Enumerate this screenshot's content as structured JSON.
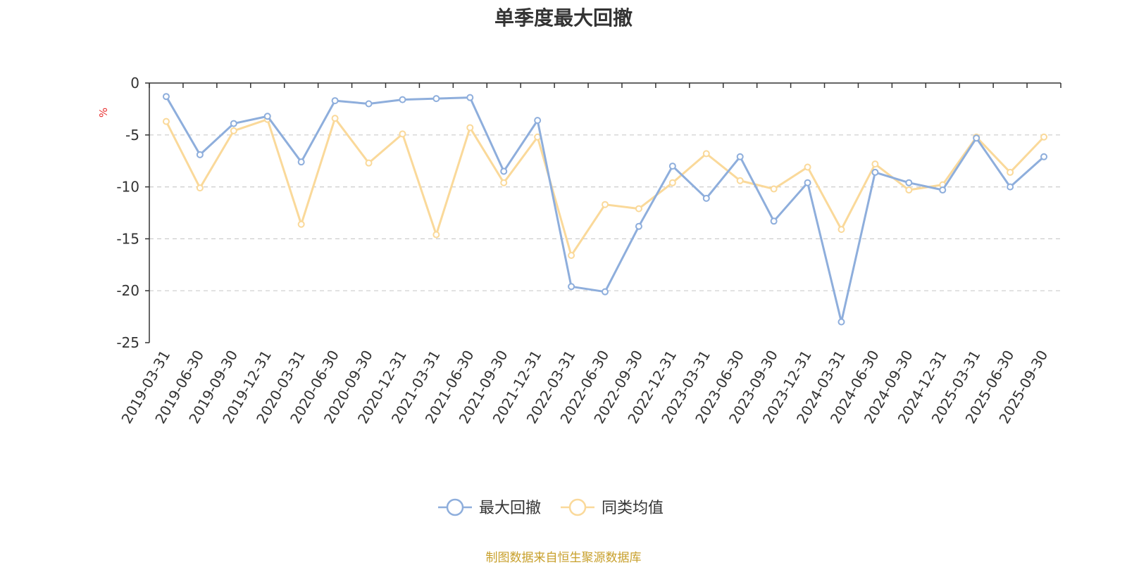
{
  "chart_data": {
    "type": "line",
    "title": "单季度最大回撤",
    "ylabel": "%",
    "xlabel": "",
    "ylim": [
      -25,
      0
    ],
    "yticks": [
      "0",
      "-5",
      "-10",
      "-15",
      "-20",
      "-25"
    ],
    "grid": true,
    "legend_position": "bottom",
    "categories": [
      "2019-03-31",
      "2019-06-30",
      "2019-09-30",
      "2019-12-31",
      "2020-03-31",
      "2020-06-30",
      "2020-09-30",
      "2020-12-31",
      "2021-03-31",
      "2021-06-30",
      "2021-09-30",
      "2021-12-31",
      "2022-03-31",
      "2022-06-30",
      "2022-09-30",
      "2022-12-31",
      "2023-03-31",
      "2023-06-30",
      "2023-09-30",
      "2023-12-31",
      "2024-03-31",
      "2024-06-30",
      "2024-09-30",
      "2024-12-31",
      "2025-03-31",
      "2025-06-30",
      "2025-09-30"
    ],
    "series": [
      {
        "name": "最大回撤",
        "color": "#8eaedc",
        "values": [
          -1.3,
          -6.9,
          -3.9,
          -3.2,
          -7.6,
          -1.7,
          -2.0,
          -1.6,
          -1.5,
          -1.4,
          -8.5,
          -3.6,
          -19.6,
          -20.1,
          -13.8,
          -8.0,
          -11.1,
          -7.1,
          -13.3,
          -9.6,
          -23.0,
          -8.6,
          -9.6,
          -10.3,
          -5.3,
          -10.0,
          -7.1
        ]
      },
      {
        "name": "同类均值",
        "color": "#fad99a",
        "values": [
          -3.7,
          -10.1,
          -4.6,
          -3.5,
          -13.6,
          -3.4,
          -7.7,
          -4.9,
          -14.6,
          -4.3,
          -9.6,
          -5.2,
          -16.6,
          -11.7,
          -12.1,
          -9.6,
          -6.8,
          -9.4,
          -10.2,
          -8.1,
          -14.1,
          -7.8,
          -10.3,
          -9.8,
          -5.2,
          -8.6,
          -5.2
        ]
      }
    ]
  },
  "footer": "制图数据来自恒生聚源数据库"
}
